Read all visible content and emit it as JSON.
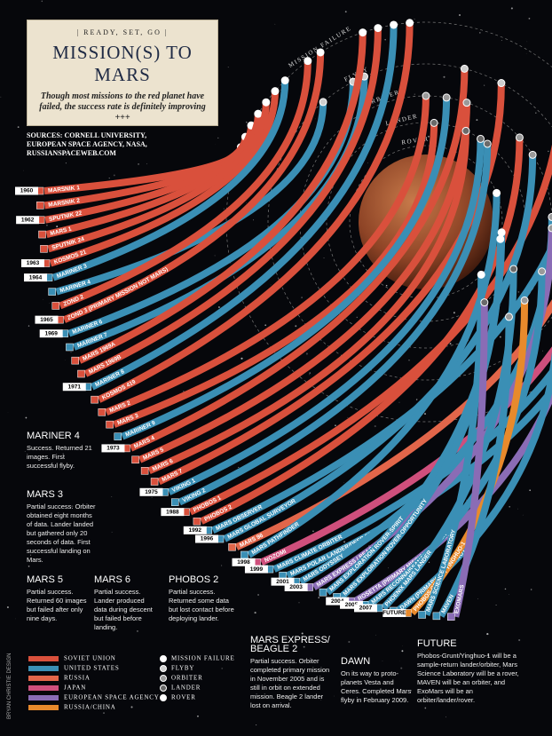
{
  "header": {
    "kicker": "| READY, SET, GO |",
    "title": "MISSION(S) TO MARS",
    "subtitle": "Though most missions to the red planet have failed, the success rate is definitely improving +++"
  },
  "sources": "SOURCES: CORNELL UNIVERSITY, EUROPEAN SPACE AGENCY, NASA, RUSSIANSPACEWEB.COM",
  "credit": "BRYAN CHRISTIE DESIGN",
  "legend": {
    "agencies": [
      {
        "name": "SOVIET UNION",
        "color": "#d9503c"
      },
      {
        "name": "UNITED STATES",
        "color": "#3a8fb5"
      },
      {
        "name": "RUSSIA",
        "color": "#e2664a"
      },
      {
        "name": "JAPAN",
        "color": "#cf4f7c"
      },
      {
        "name": "EUROPEAN SPACE AGENCY",
        "color": "#8a6cb5"
      },
      {
        "name": "RUSSIA/CHINA",
        "color": "#e88a2c"
      }
    ],
    "outcomes": [
      {
        "name": "MISSION FAILURE",
        "fill": "#ffffff"
      },
      {
        "name": "FLYBY",
        "fill": "#cfcfcf"
      },
      {
        "name": "ORBITER",
        "fill": "#9a9a9a"
      },
      {
        "name": "LANDER",
        "fill": "#6a6a6a"
      },
      {
        "name": "ROVER",
        "fill": "#ffffff"
      }
    ]
  },
  "launches": [
    {
      "year": "1960",
      "missions": [
        {
          "name": "MARSNIK 1",
          "agency": "SOVIET UNION",
          "outcome": "MISSION FAILURE"
        },
        {
          "name": "MARSNIK 2",
          "agency": "SOVIET UNION",
          "outcome": "MISSION FAILURE"
        }
      ]
    },
    {
      "year": "1962",
      "missions": [
        {
          "name": "SPUTNIK 22",
          "agency": "SOVIET UNION",
          "outcome": "MISSION FAILURE"
        },
        {
          "name": "MARS 1",
          "agency": "SOVIET UNION",
          "outcome": "MISSION FAILURE"
        },
        {
          "name": "SPUTNIK 24",
          "agency": "SOVIET UNION",
          "outcome": "MISSION FAILURE"
        }
      ]
    },
    {
      "year": "1963",
      "missions": [
        {
          "name": "KOSMOS 21",
          "agency": "SOVIET UNION",
          "outcome": "MISSION FAILURE"
        }
      ]
    },
    {
      "year": "1964",
      "missions": [
        {
          "name": "MARINER 3",
          "agency": "UNITED STATES",
          "outcome": "MISSION FAILURE"
        },
        {
          "name": "MARINER 4",
          "agency": "UNITED STATES",
          "outcome": "FLYBY"
        },
        {
          "name": "ZOND 2",
          "agency": "SOVIET UNION",
          "outcome": "MISSION FAILURE"
        }
      ]
    },
    {
      "year": "1965",
      "missions": [
        {
          "name": "ZOND 3 (PRIMARY MISSION NOT MARS)",
          "agency": "SOVIET UNION",
          "outcome": "MISSION FAILURE"
        }
      ]
    },
    {
      "year": "1969",
      "missions": [
        {
          "name": "MARINER 6",
          "agency": "UNITED STATES",
          "outcome": "FLYBY"
        },
        {
          "name": "MARINER 7",
          "agency": "UNITED STATES",
          "outcome": "FLYBY"
        },
        {
          "name": "MARS 1969A",
          "agency": "SOVIET UNION",
          "outcome": "MISSION FAILURE"
        },
        {
          "name": "MARS 1969B",
          "agency": "SOVIET UNION",
          "outcome": "MISSION FAILURE"
        }
      ]
    },
    {
      "year": "1971",
      "missions": [
        {
          "name": "MARINER 8",
          "agency": "UNITED STATES",
          "outcome": "MISSION FAILURE"
        },
        {
          "name": "KOSMOS 419",
          "agency": "SOVIET UNION",
          "outcome": "MISSION FAILURE"
        },
        {
          "name": "MARS 2",
          "agency": "SOVIET UNION",
          "outcome": "ORBITER"
        },
        {
          "name": "MARS 3",
          "agency": "SOVIET UNION",
          "outcome": "LANDER"
        },
        {
          "name": "MARINER 9",
          "agency": "UNITED STATES",
          "outcome": "ORBITER"
        }
      ]
    },
    {
      "year": "1973",
      "missions": [
        {
          "name": "MARS 4",
          "agency": "SOVIET UNION",
          "outcome": "FLYBY"
        },
        {
          "name": "MARS 5",
          "agency": "SOVIET UNION",
          "outcome": "ORBITER"
        },
        {
          "name": "MARS 6",
          "agency": "SOVIET UNION",
          "outcome": "LANDER"
        },
        {
          "name": "MARS 7",
          "agency": "SOVIET UNION",
          "outcome": "FLYBY"
        }
      ]
    },
    {
      "year": "1975",
      "missions": [
        {
          "name": "VIKING 1",
          "agency": "UNITED STATES",
          "outcome": "LANDER"
        },
        {
          "name": "VIKING 2",
          "agency": "UNITED STATES",
          "outcome": "LANDER"
        }
      ]
    },
    {
      "year": "1988",
      "missions": [
        {
          "name": "PHOBOS 1",
          "agency": "SOVIET UNION",
          "outcome": "MISSION FAILURE"
        },
        {
          "name": "PHOBOS 2",
          "agency": "SOVIET UNION",
          "outcome": "ORBITER"
        }
      ]
    },
    {
      "year": "1992",
      "missions": [
        {
          "name": "MARS OBSERVER",
          "agency": "UNITED STATES",
          "outcome": "MISSION FAILURE"
        }
      ]
    },
    {
      "year": "1996",
      "missions": [
        {
          "name": "MARS GLOBAL SURVEYOR",
          "agency": "UNITED STATES",
          "outcome": "ORBITER"
        },
        {
          "name": "MARS 96",
          "agency": "RUSSIA",
          "outcome": "MISSION FAILURE"
        },
        {
          "name": "MARS PATHFINDER",
          "agency": "UNITED STATES",
          "outcome": "ROVER"
        }
      ]
    },
    {
      "year": "1998",
      "missions": [
        {
          "name": "NOZOMI",
          "agency": "JAPAN",
          "outcome": "MISSION FAILURE"
        }
      ]
    },
    {
      "year": "1999",
      "missions": [
        {
          "name": "MARS CLIMATE ORBITER",
          "agency": "UNITED STATES",
          "outcome": "MISSION FAILURE"
        },
        {
          "name": "MARS POLAR LANDER/DEEP SPACE 2 PROBES",
          "agency": "UNITED STATES",
          "outcome": "MISSION FAILURE"
        }
      ]
    },
    {
      "year": "2001",
      "missions": [
        {
          "name": "MARS ODYSSEY",
          "agency": "UNITED STATES",
          "outcome": "ORBITER"
        }
      ]
    },
    {
      "year": "2003",
      "missions": [
        {
          "name": "MARS EXPRESS / BEAGLE 2",
          "agency": "EUROPEAN SPACE AGENCY",
          "outcome": "ORBITER"
        },
        {
          "name": "MARS EXPLORATION ROVER-SPIRIT",
          "agency": "UNITED STATES",
          "outcome": "ROVER"
        },
        {
          "name": "MARS EXPLORATION ROVER-OPPORTUNITY",
          "agency": "UNITED STATES",
          "outcome": "ROVER"
        }
      ]
    },
    {
      "year": "2004",
      "missions": [
        {
          "name": "ROSETTA (PRIMARY MISSION NOT MARS)",
          "agency": "EUROPEAN SPACE AGENCY",
          "outcome": "FLYBY"
        }
      ]
    },
    {
      "year": "2005",
      "missions": [
        {
          "name": "MARS RECONNAISSANCE ORBITER",
          "agency": "UNITED STATES",
          "outcome": "ORBITER"
        }
      ]
    },
    {
      "year": "2007",
      "missions": [
        {
          "name": "PHOENIX MARS LANDER",
          "agency": "UNITED STATES",
          "outcome": "LANDER"
        },
        {
          "name": "DAWN (PRIMARY MISSION NOT MARS)",
          "agency": "UNITED STATES",
          "outcome": "FLYBY"
        }
      ]
    },
    {
      "year": "FUTURE",
      "missions": [
        {
          "name": "PHOBOS-GRUNT / YINGHUO-1",
          "agency": "RUSSIA/CHINA",
          "outcome": "ORBITER"
        },
        {
          "name": "MARS SCIENCE LABORATORY",
          "agency": "UNITED STATES",
          "outcome": "ROVER"
        },
        {
          "name": "MAVEN",
          "agency": "UNITED STATES",
          "outcome": "ORBITER"
        },
        {
          "name": "EXOMARS",
          "agency": "EUROPEAN SPACE AGENCY",
          "outcome": "LANDER"
        }
      ]
    }
  ],
  "notes": [
    {
      "title": "MARINER 4",
      "text": "Success. Returned 21 images. First successful flyby."
    },
    {
      "title": "MARS 3",
      "text": "Partial success. Orbiter obtained eight months of data. Lander landed but gathered only 20 seconds of data. First successful landing on Mars."
    },
    {
      "title": "MARS 5",
      "text": "Partial success. Returned 60 images but failed after only nine days."
    },
    {
      "title": "MARS 6",
      "text": "Partial success. Lander produced data during descent but failed before landing."
    },
    {
      "title": "PHOBOS 2",
      "text": "Partial success. Returned some data but lost contact before deploying lander."
    },
    {
      "title": "MARS EXPRESS/ BEAGLE 2",
      "text": "Partial success. Orbiter completed primary mission in November 2005 and is still in orbit on extended mission. Beagle 2 lander lost on arrival."
    },
    {
      "title": "DAWN",
      "text": "On its way to proto-planets Vesta and Ceres. Completed Mars flyby in February 2009."
    },
    {
      "title": "FUTURE",
      "text": "Phobos-Grunt/Yinghuo-1 will be a sample-return lander/orbiter, Mars Science Laboratory will be a rover, MAVEN will be an orbiter, and ExoMars will be an orbiter/lander/rover."
    }
  ]
}
